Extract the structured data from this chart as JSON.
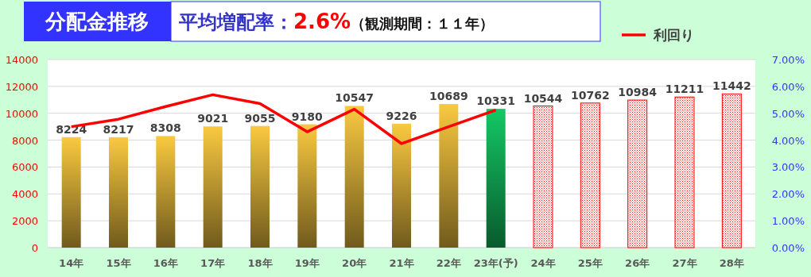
{
  "chart_data": {
    "type": "bar",
    "title": "分配金推移",
    "subtitle": "平均増配率：2.6%（観測期間：１１年）",
    "categories": [
      "14年",
      "15年",
      "16年",
      "17年",
      "18年",
      "19年",
      "20年",
      "21年",
      "22年",
      "23年(予)",
      "24年",
      "25年",
      "26年",
      "27年",
      "28年"
    ],
    "series": [
      {
        "color": "#f9c940",
        "values": [
          8224,
          8217,
          8308,
          9021,
          9055,
          9180,
          10547,
          9226,
          10689,
          null,
          null,
          null,
          null,
          null,
          null
        ],
        "value_labels": [
          "8224",
          "8217",
          "8308",
          "9021",
          "9055",
          "9180",
          "10547",
          "9226",
          "10689",
          null,
          null,
          null,
          null,
          null,
          null
        ]
      },
      {
        "color": "#14c864",
        "values": [
          null,
          null,
          null,
          null,
          null,
          null,
          null,
          null,
          null,
          10331,
          null,
          null,
          null,
          null,
          null
        ],
        "value_labels": [
          null,
          null,
          null,
          null,
          null,
          null,
          null,
          null,
          null,
          "10331",
          null,
          null,
          null,
          null,
          null
        ]
      },
      {
        "color": "#ff0000",
        "values": [
          null,
          null,
          null,
          null,
          null,
          null,
          null,
          null,
          null,
          null,
          10544,
          10762,
          10984,
          11211,
          11442
        ],
        "value_labels": [
          null,
          null,
          null,
          null,
          null,
          null,
          null,
          null,
          null,
          null,
          "10544",
          "10762",
          "10984",
          "11211",
          "11442"
        ]
      },
      {
        "type": "line",
        "axis": "y2",
        "name": "利回り",
        "color": "#ff0000",
        "values": [
          4.5,
          4.78,
          5.25,
          5.69,
          5.36,
          4.31,
          5.15,
          3.87,
          4.5,
          5.12,
          null,
          null,
          null,
          null,
          null
        ]
      }
    ],
    "ylim": [
      0,
      14000
    ],
    "yticks": [
      0,
      2000,
      4000,
      6000,
      8000,
      10000,
      12000,
      14000
    ],
    "y2lim": [
      0,
      7
    ],
    "y2ticks": [
      {
        "value": 0,
        "label": "0.00%"
      },
      {
        "value": 1,
        "label": "1.00%"
      },
      {
        "value": 2,
        "label": "2.00%"
      },
      {
        "value": 3,
        "label": "3.00%"
      },
      {
        "value": 4,
        "label": "4.00%"
      },
      {
        "value": 5,
        "label": "5.00%"
      },
      {
        "value": 6,
        "label": "6.00%"
      },
      {
        "value": 7,
        "label": "7.00%"
      }
    ],
    "grid": "y",
    "legend": "top right",
    "marker": "none"
  }
}
